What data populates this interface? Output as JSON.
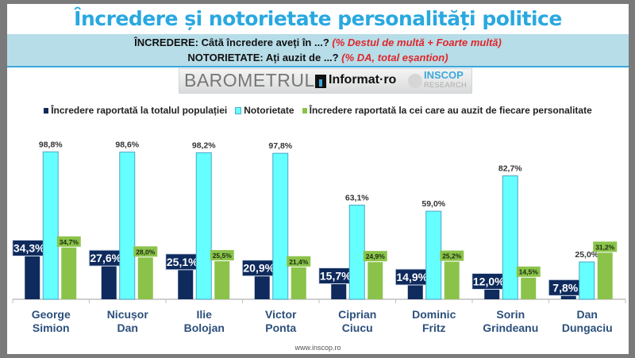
{
  "header": {
    "title": "Încredere și notorietate personalități politice",
    "line1_label": "ÎNCREDERE: Câtă încredere aveți în ...?",
    "line1_note": "(% Destul de multă + Foarte multă)",
    "line2_label": "NOTORIETATE: Ați auzit de ...?",
    "line2_note": "(% DA, total eșantion)"
  },
  "logos": {
    "barometru": "BAROMETRUL",
    "informat": "Informat·ro",
    "inscop": "INSCOP",
    "research": "RESEARCH"
  },
  "footer": {
    "url": "www.inscop.ro"
  },
  "colors": {
    "series_navy": "#0f2a5c",
    "series_cyan": "#66ffff",
    "series_green": "#8bc34a",
    "title": "#29a8e0",
    "note_red": "#e0262b",
    "category_label": "#2c4f7c"
  },
  "chart_data": {
    "type": "bar",
    "title": "Încredere și notorietate personalități politice",
    "xlabel": "",
    "ylabel": "",
    "ylim": [
      0,
      100
    ],
    "grid": false,
    "legend_position": "top",
    "categories": [
      [
        "George",
        "Simion"
      ],
      [
        "Nicușor",
        "Dan"
      ],
      [
        "Ilie",
        "Bolojan"
      ],
      [
        "Victor",
        "Ponta"
      ],
      [
        "Ciprian",
        "Ciucu"
      ],
      [
        "Dominic",
        "Fritz"
      ],
      [
        "Sorin",
        "Grindeanu"
      ],
      [
        "Dan",
        "Dungaciu"
      ]
    ],
    "series": [
      {
        "name": "Încredere raportată la totalul populației",
        "color": "#0f2a5c",
        "values": [
          34.3,
          27.6,
          25.1,
          20.9,
          15.7,
          14.9,
          12.0,
          7.8
        ],
        "labels": [
          "34,3%",
          "27,6%",
          "25,1%",
          "20,9%",
          "15,7%",
          "14,9%",
          "12,0%",
          "7,8%"
        ]
      },
      {
        "name": "Notorietate",
        "color": "#66ffff",
        "values": [
          98.8,
          98.6,
          98.2,
          97.8,
          63.1,
          59.0,
          82.7,
          25.0
        ],
        "labels": [
          "98,8%",
          "98,6%",
          "98,2%",
          "97,8%",
          "63,1%",
          "59,0%",
          "82,7%",
          "25,0%"
        ]
      },
      {
        "name": "Încredere raportată la cei care au auzit de fiecare personalitate",
        "color": "#8bc34a",
        "values": [
          34.7,
          28.0,
          25.5,
          21.4,
          24.9,
          25.2,
          14.5,
          31.2
        ],
        "labels": [
          "34,7%",
          "28,0%",
          "25,5%",
          "21,4%",
          "24,9%",
          "25,2%",
          "14,5%",
          "31,2%"
        ]
      }
    ]
  }
}
